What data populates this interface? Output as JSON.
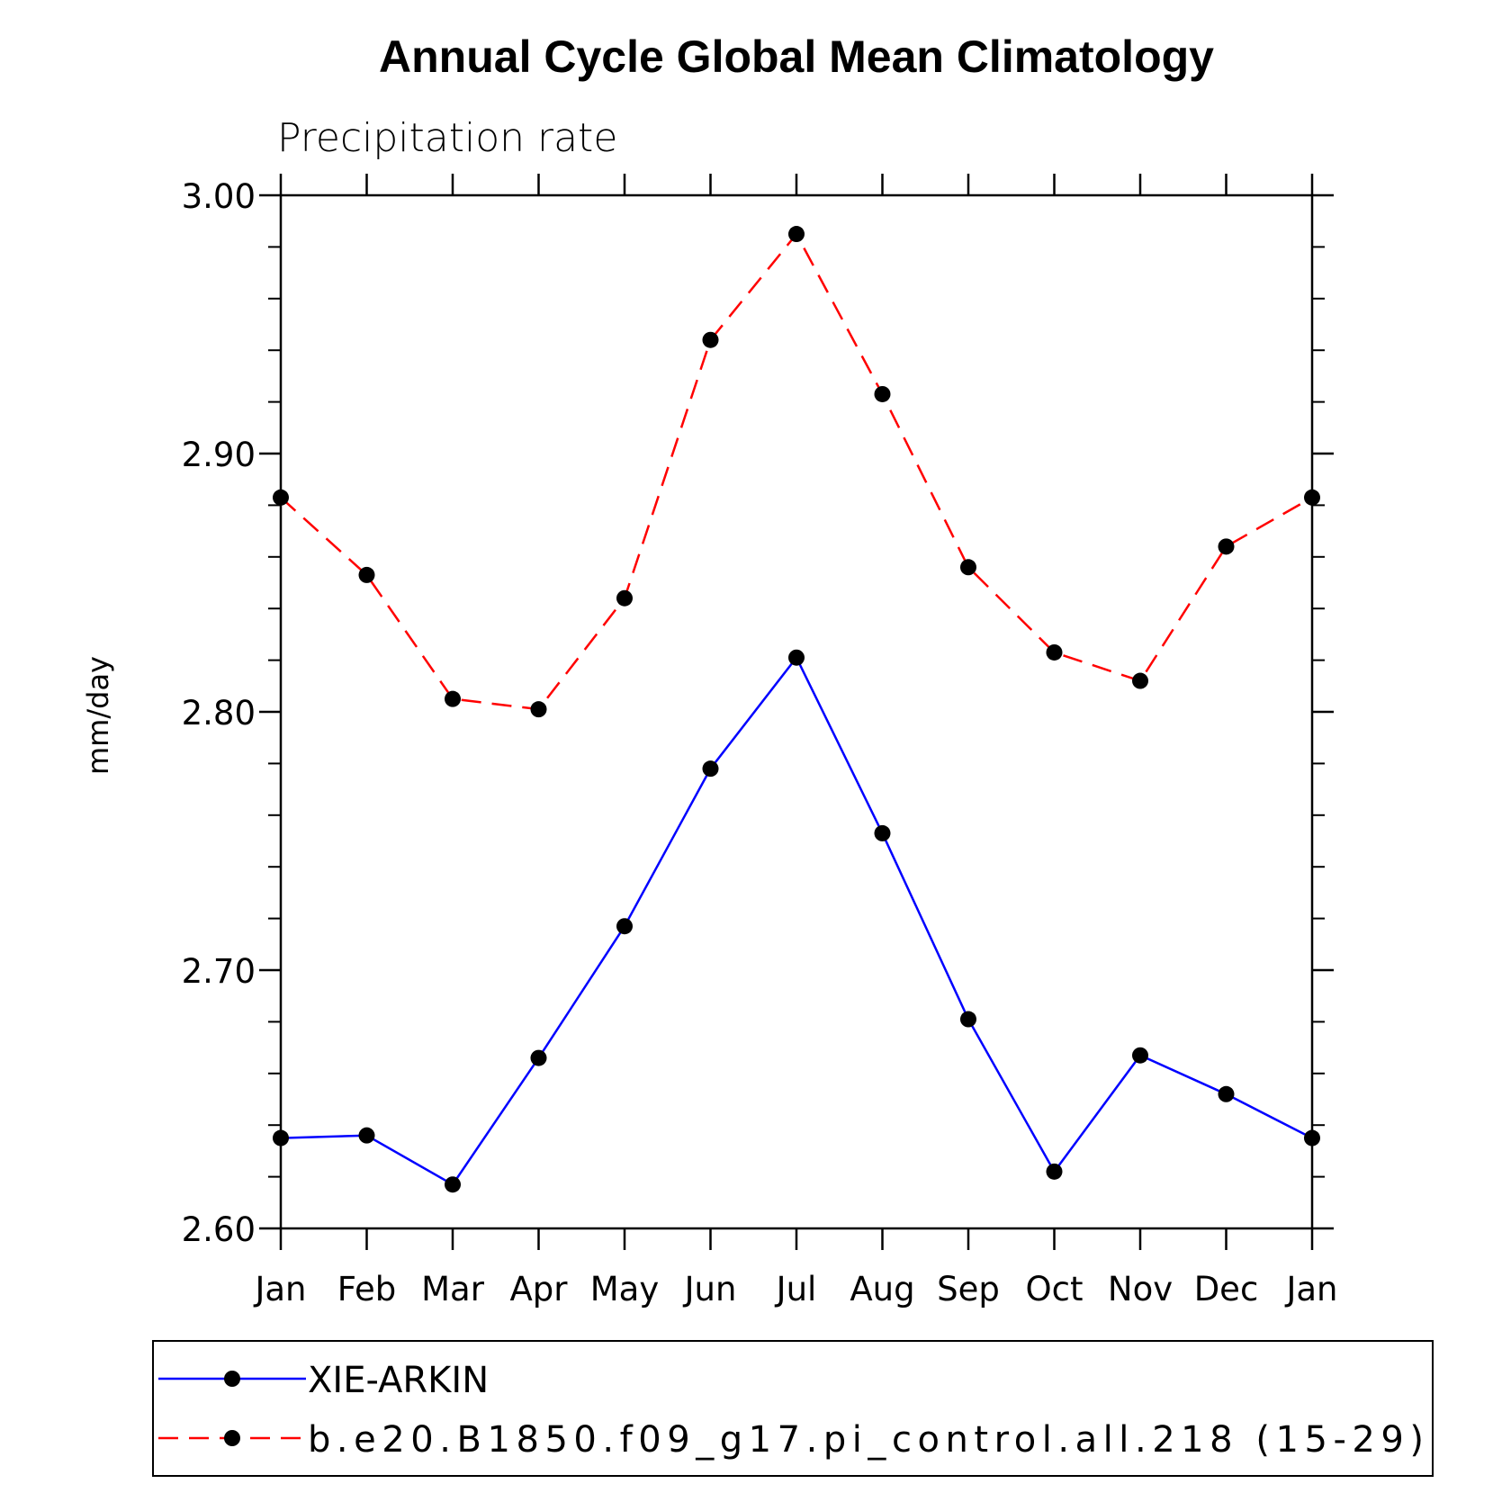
{
  "chart_data": {
    "type": "line",
    "title": "Annual Cycle Global Mean Climatology",
    "subtitle": "Precipitation rate",
    "xlabel": "",
    "ylabel": "mm/day",
    "categories": [
      "Jan",
      "Feb",
      "Mar",
      "Apr",
      "May",
      "Jun",
      "Jul",
      "Aug",
      "Sep",
      "Oct",
      "Nov",
      "Dec",
      "Jan"
    ],
    "ylim": [
      2.6,
      3.0
    ],
    "yticks": [
      "2.60",
      "2.70",
      "2.80",
      "2.90",
      "3.00"
    ],
    "grid": false,
    "legend_position": "bottom",
    "series": [
      {
        "name": "XIE-ARKIN",
        "color": "#0000ff",
        "dash": "solid",
        "marker": "circle",
        "values": [
          2.635,
          2.636,
          2.617,
          2.666,
          2.717,
          2.778,
          2.821,
          2.753,
          2.681,
          2.622,
          2.667,
          2.652,
          2.635
        ]
      },
      {
        "name": "b.e20.B1850.f09_g17.pi_control.all.218 (15-29)",
        "color": "#ff0000",
        "dash": "dashed",
        "marker": "circle",
        "values": [
          2.883,
          2.853,
          2.805,
          2.801,
          2.844,
          2.944,
          2.985,
          2.923,
          2.856,
          2.823,
          2.812,
          2.864,
          2.883
        ]
      }
    ]
  }
}
